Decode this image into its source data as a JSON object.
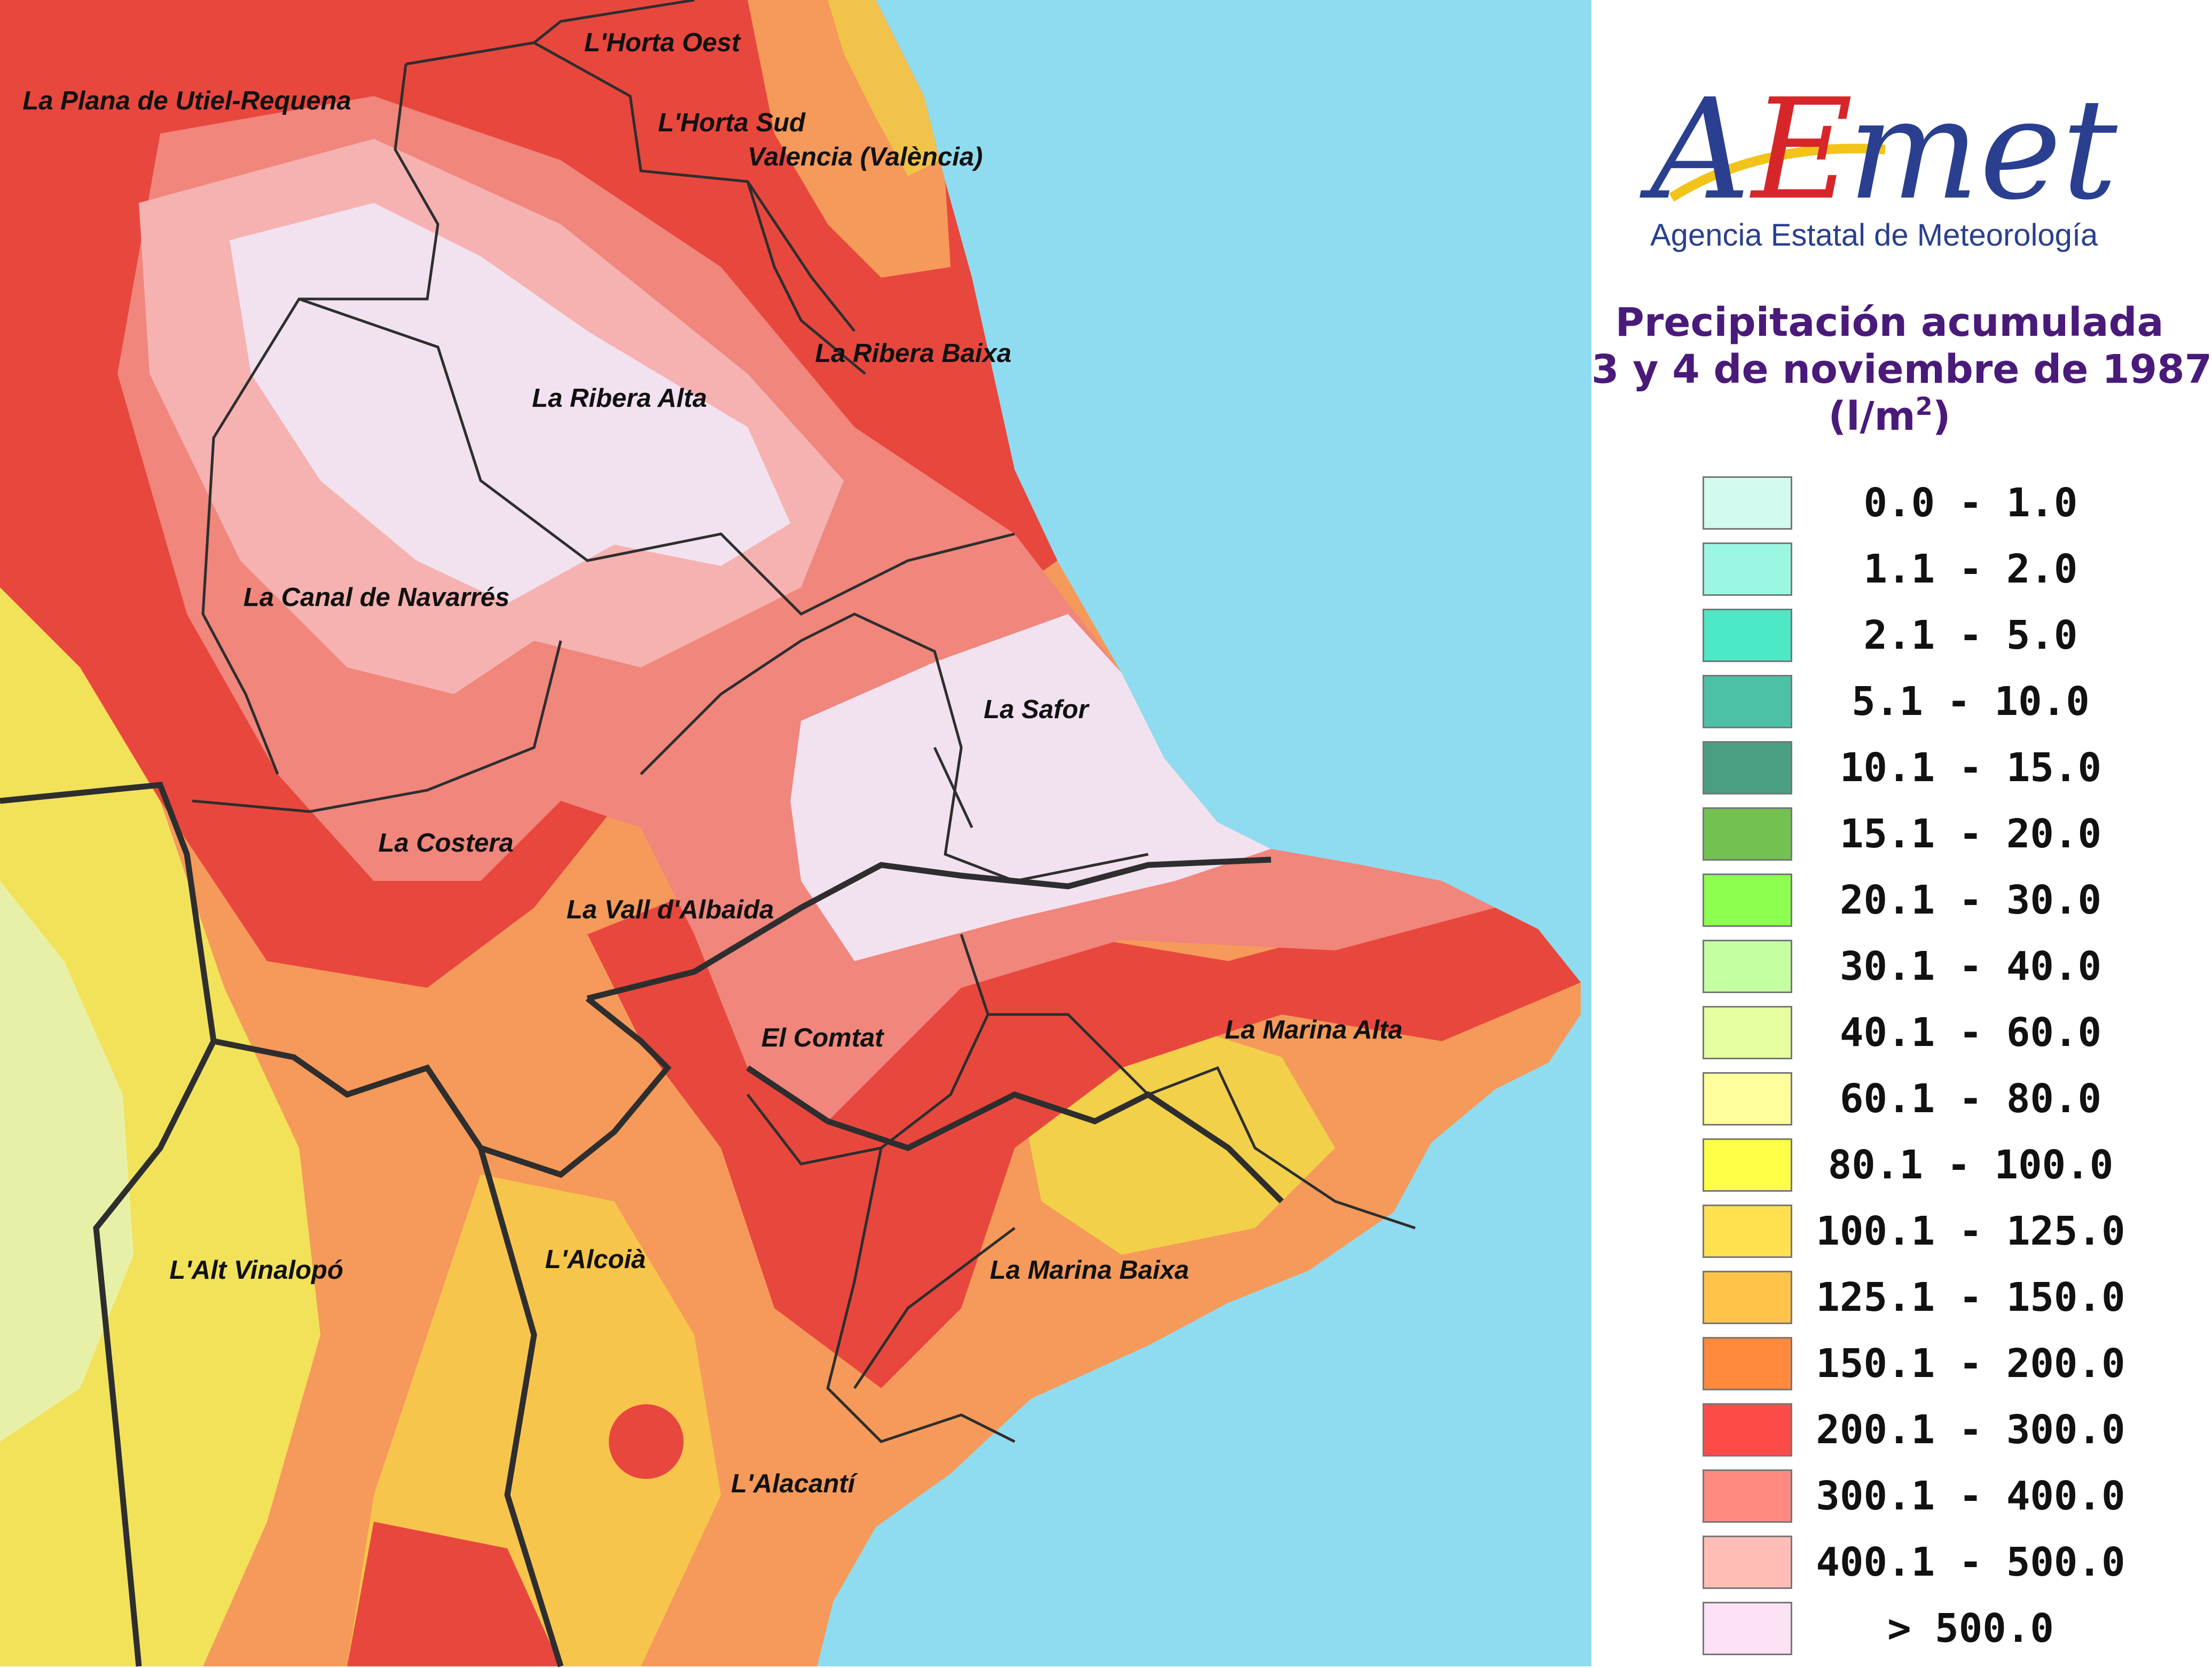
{
  "map": {
    "sea_color": "#8fdcf0",
    "regions": [
      {
        "name": "L'Horta Oest"
      },
      {
        "name": "La Plana de Utiel-Requena"
      },
      {
        "name": "L'Horta Sud"
      },
      {
        "name": "Valencia (València)"
      },
      {
        "name": "La Ribera Baixa"
      },
      {
        "name": "La Ribera Alta"
      },
      {
        "name": "La Canal de Navarrés"
      },
      {
        "name": "La Safor"
      },
      {
        "name": "La Costera"
      },
      {
        "name": "La Vall d'Albaida"
      },
      {
        "name": "El Comtat"
      },
      {
        "name": "La Marina Alta"
      },
      {
        "name": "L'Alt Vinalopó"
      },
      {
        "name": "L'Alcoià"
      },
      {
        "name": "La Marina Baixa"
      },
      {
        "name": "L'Alacantí"
      }
    ]
  },
  "logo": {
    "wordmark": "AEmet",
    "subtitle": "Agencia Estatal de Meteorología"
  },
  "legend": {
    "title_line1": "Precipitación acumulada",
    "title_line2": "3 y 4 de noviembre de 1987",
    "unit_prefix": "(l/m",
    "unit_superscript": "2",
    "unit_suffix": ")",
    "items": [
      {
        "label": "0.0 - 1.0",
        "color": "#d2faee"
      },
      {
        "label": "1.1 - 2.0",
        "color": "#9cf7e2"
      },
      {
        "label": "2.1 - 5.0",
        "color": "#4de8c6"
      },
      {
        "label": "5.1 - 10.0",
        "color": "#4cc1a6"
      },
      {
        "label": "10.1 - 15.0",
        "color": "#4a9e82"
      },
      {
        "label": "15.1 - 20.0",
        "color": "#72c151"
      },
      {
        "label": "20.1 - 30.0",
        "color": "#8cff4f"
      },
      {
        "label": "30.1 - 40.0",
        "color": "#c4ffa2"
      },
      {
        "label": "40.1 - 60.0",
        "color": "#e6ffa0"
      },
      {
        "label": "60.1 - 80.0",
        "color": "#ffff9c"
      },
      {
        "label": "80.1 - 100.0",
        "color": "#ffff47"
      },
      {
        "label": "100.1 - 125.0",
        "color": "#ffe14f"
      },
      {
        "label": "125.1 - 150.0",
        "color": "#ffc34a"
      },
      {
        "label": "150.1 - 200.0",
        "color": "#ff8a3d"
      },
      {
        "label": "200.1 - 300.0",
        "color": "#ff4a4a"
      },
      {
        "label": "300.1 - 400.0",
        "color": "#ff8a80"
      },
      {
        "label": "400.1 - 500.0",
        "color": "#ffbdb5"
      },
      {
        "label": "> 500.0",
        "color": "#fde2f5"
      }
    ]
  }
}
